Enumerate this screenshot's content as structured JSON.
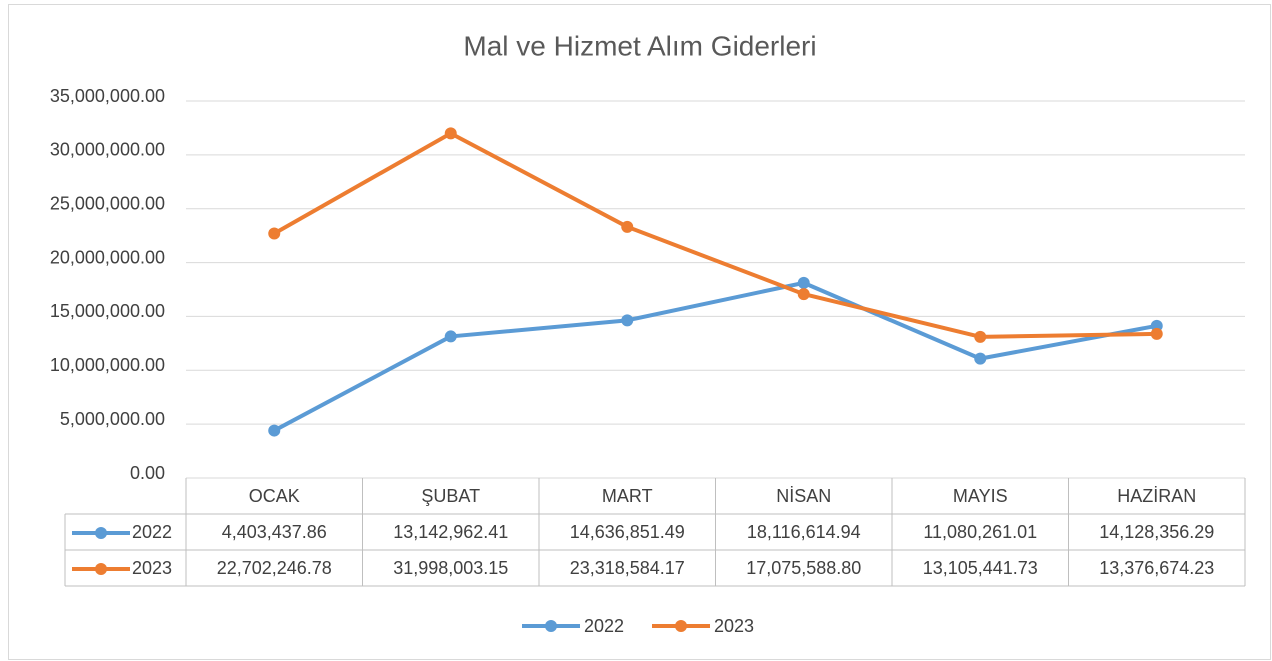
{
  "chart_data": {
    "type": "line",
    "title": "Mal ve Hizmet Alım Giderleri",
    "categories": [
      "OCAK",
      "ŞUBAT",
      "MART",
      "NİSAN",
      "MAYIS",
      "HAZİRAN"
    ],
    "series": [
      {
        "name": "2022",
        "color": "#5b9bd5",
        "values": [
          4403437.86,
          13142962.41,
          14636851.49,
          18116614.94,
          11080261.01,
          14128356.29
        ],
        "value_labels": [
          "4,403,437.86",
          "13,142,962.41",
          "14,636,851.49",
          "18,116,614.94",
          "11,080,261.01",
          "14,128,356.29"
        ]
      },
      {
        "name": "2023",
        "color": "#ed7d31",
        "values": [
          22702246.78,
          31998003.15,
          23318584.17,
          17075588.8,
          13105441.73,
          13376674.23
        ],
        "value_labels": [
          "22,702,246.78",
          "31,998,003.15",
          "23,318,584.17",
          "17,075,588.80",
          "13,105,441.73",
          "13,376,674.23"
        ]
      }
    ],
    "ylim": [
      0,
      35000000
    ],
    "yticks": [
      {
        "value": 0,
        "label": "0.00"
      },
      {
        "value": 5000000,
        "label": "5,000,000.00"
      },
      {
        "value": 10000000,
        "label": "10,000,000.00"
      },
      {
        "value": 15000000,
        "label": "15,000,000.00"
      },
      {
        "value": 20000000,
        "label": "20,000,000.00"
      },
      {
        "value": 25000000,
        "label": "25,000,000.00"
      },
      {
        "value": 30000000,
        "label": "30,000,000.00"
      },
      {
        "value": 35000000,
        "label": "35,000,000.00"
      }
    ],
    "grid": true,
    "legend": "bottom"
  }
}
